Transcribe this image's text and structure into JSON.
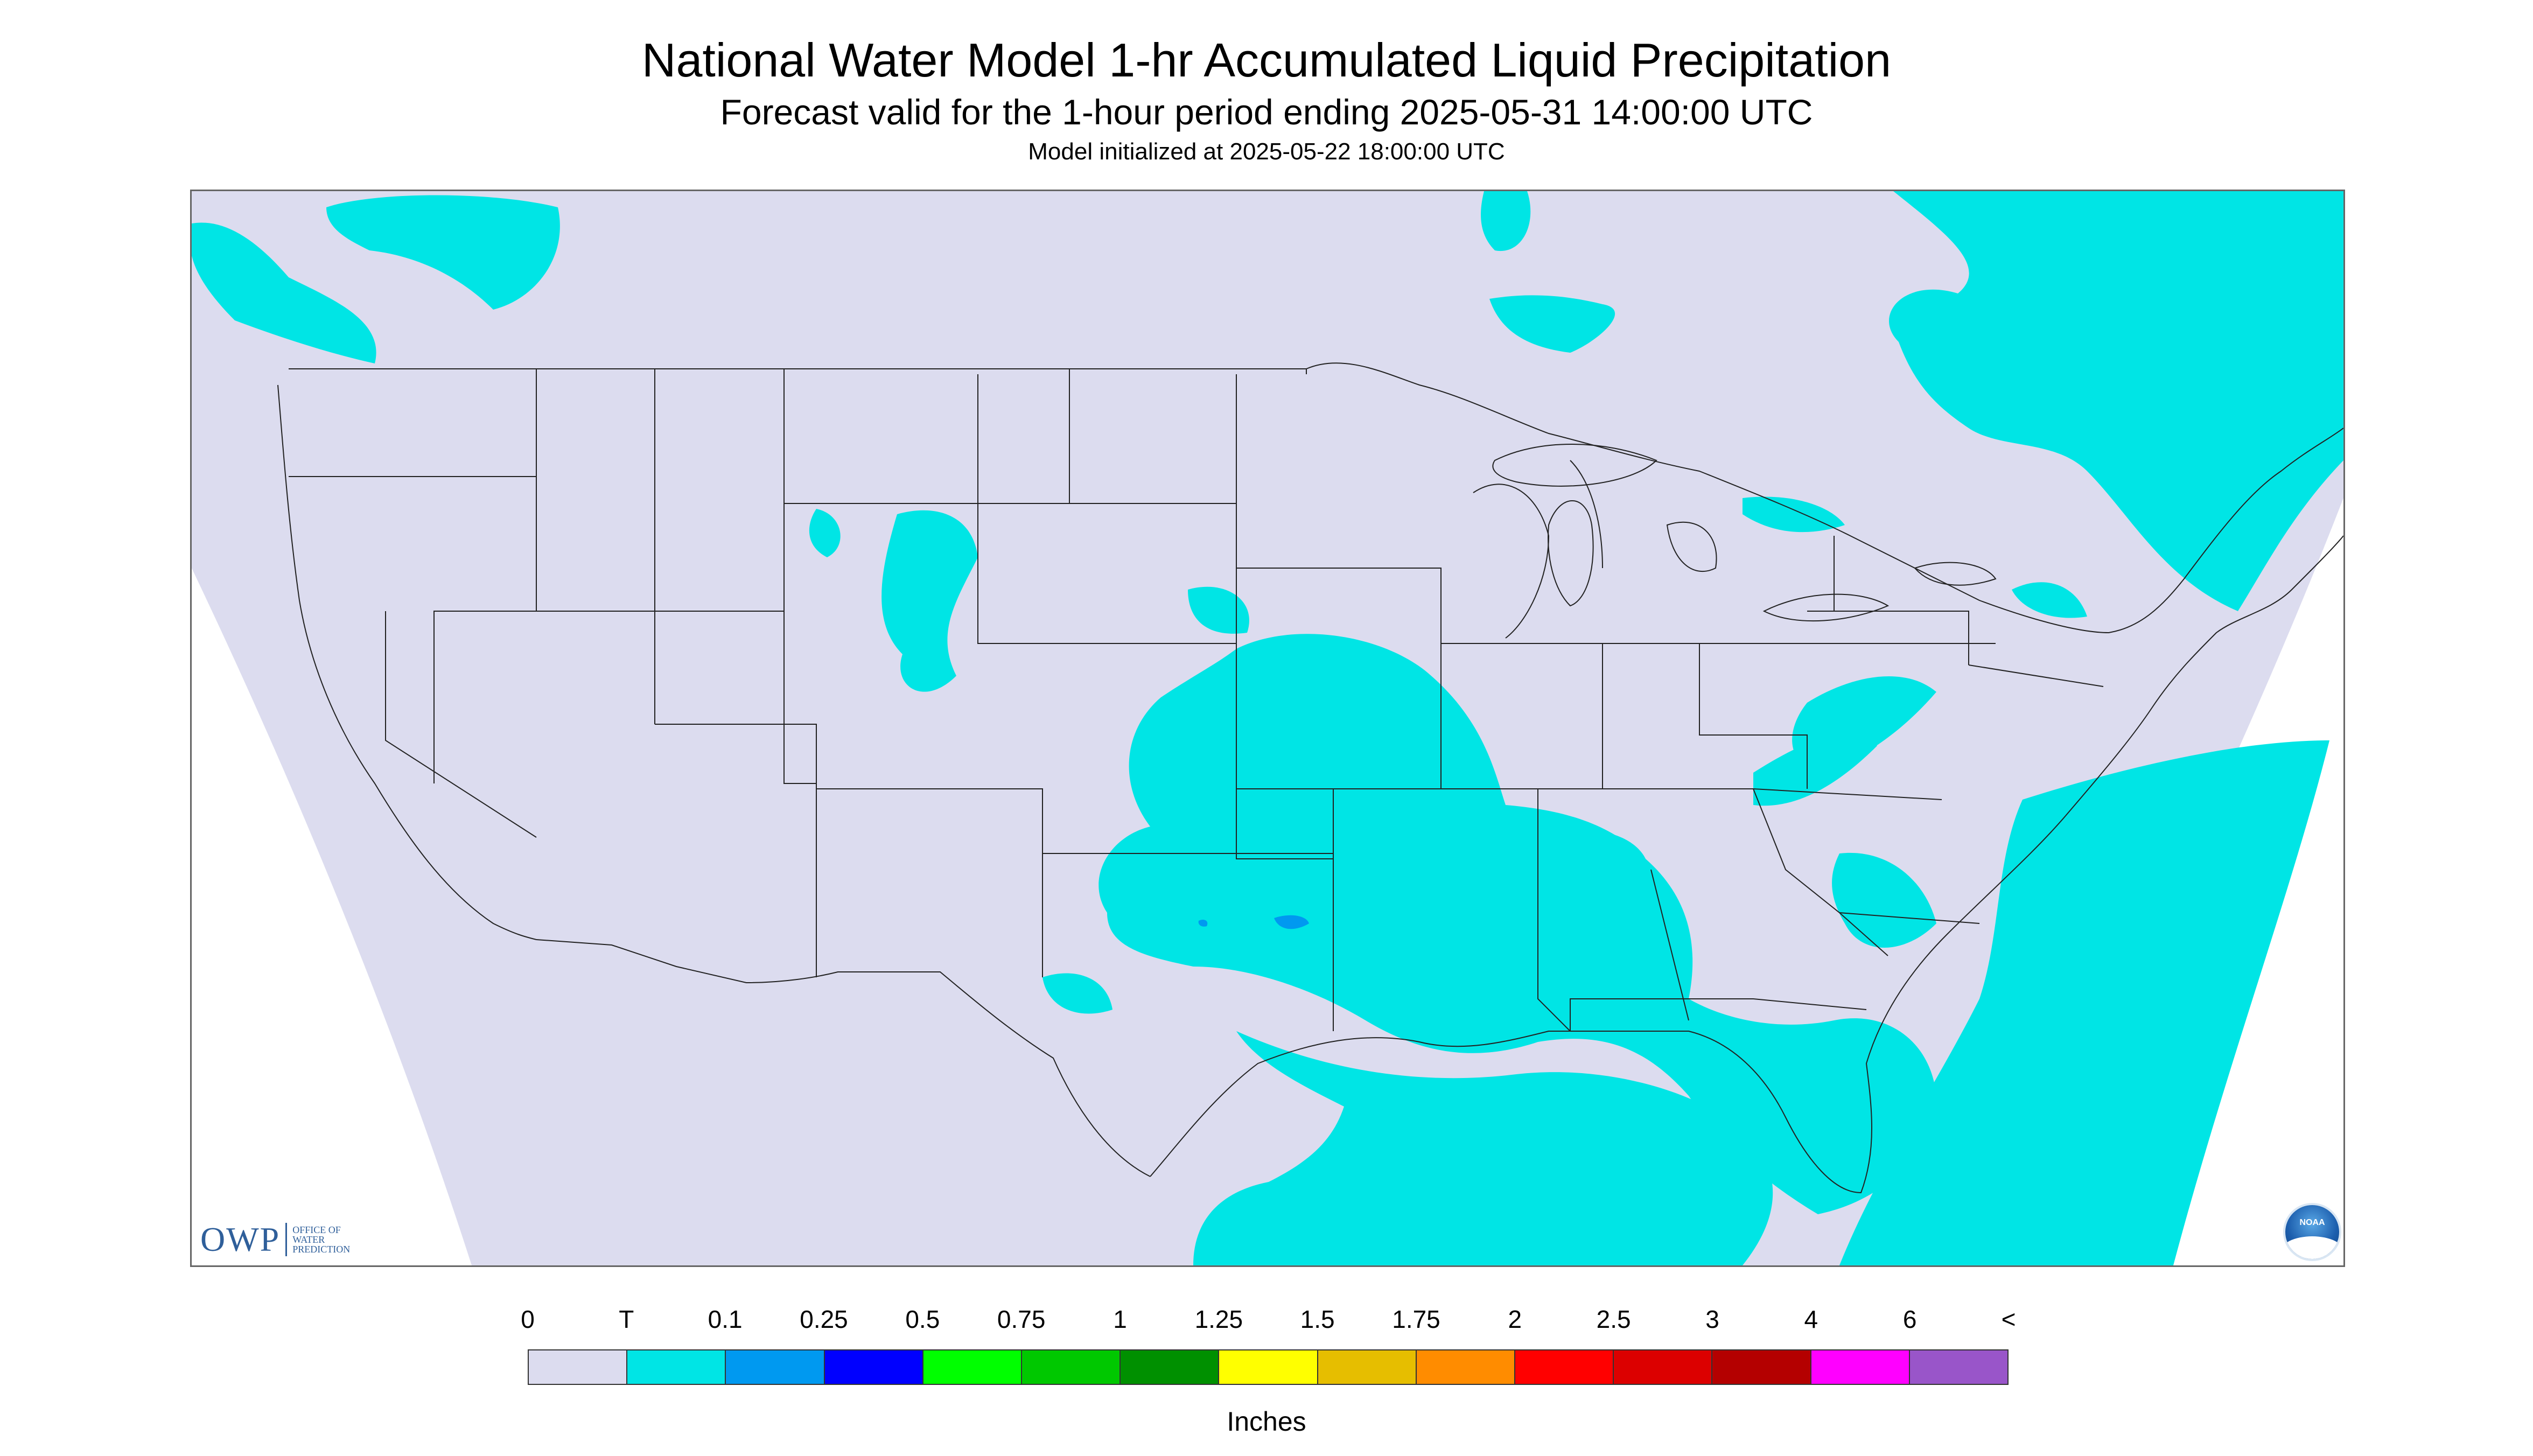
{
  "header": {
    "title": "National Water Model 1-hr Accumulated Liquid Precipitation",
    "subtitle": "Forecast valid for the 1-hour period ending 2025-05-31 14:00:00 UTC",
    "init": "Model initialized at 2025-05-22 18:00:00 UTC"
  },
  "map": {
    "background_color": "#dcdcef",
    "precip_color": "#00e5e5",
    "heavy_color": "#0099f0",
    "border_color": "#222222"
  },
  "logos": {
    "owp_mark": "OWP",
    "owp_words": [
      "OFFICE OF",
      "WATER",
      "PREDICTION"
    ],
    "noaa_text": "NOAA"
  },
  "legend": {
    "labels": [
      "0",
      "T",
      "0.1",
      "0.25",
      "0.5",
      "0.75",
      "1",
      "1.25",
      "1.5",
      "1.75",
      "2",
      "2.5",
      "3",
      "4",
      "6",
      "<"
    ],
    "colors": [
      "#dcdcef",
      "#00e5e5",
      "#0099f0",
      "#0000ff",
      "#00ff00",
      "#00c800",
      "#009000",
      "#ffff00",
      "#e6be00",
      "#ff8c00",
      "#ff0000",
      "#dc0000",
      "#b40000",
      "#ff00ff",
      "#9955c9"
    ],
    "units": "Inches"
  }
}
